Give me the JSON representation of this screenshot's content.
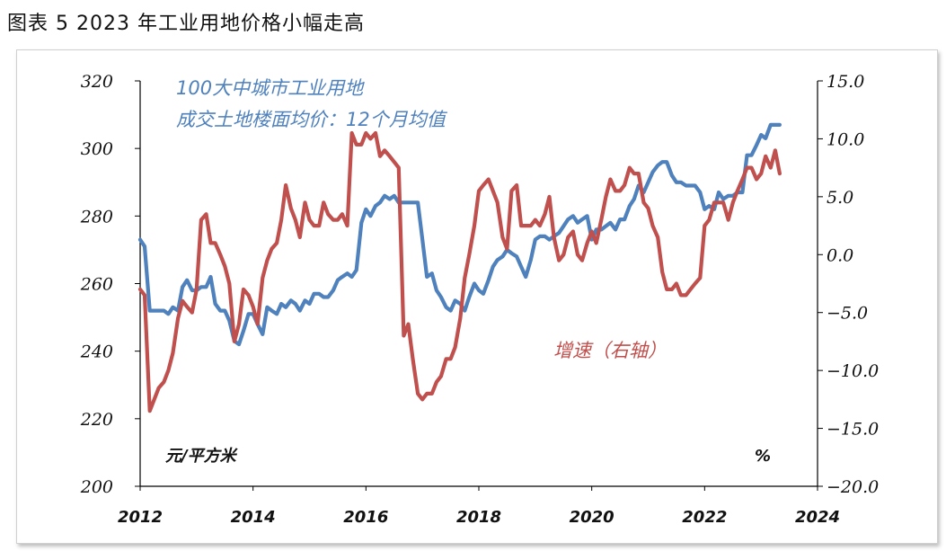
{
  "title": "图表 5 2023 年工业用地价格小幅走高",
  "chart_data": {
    "type": "line",
    "x_ticks": [
      "2012",
      "2014",
      "2016",
      "2018",
      "2020",
      "2022",
      "2024"
    ],
    "xlim": [
      2012,
      2024
    ],
    "y_left": {
      "ticks": [
        "320",
        "300",
        "280",
        "260",
        "240",
        "220",
        "200"
      ],
      "ylim": [
        200,
        320
      ],
      "unit": "元/平方米"
    },
    "y_right": {
      "ticks": [
        "15.0",
        "10.0",
        "5.0",
        "0.0",
        "-5.0",
        "-10.0",
        "-15.0",
        "-20.0"
      ],
      "ylim": [
        -20,
        15
      ],
      "unit": "%"
    },
    "annotations": {
      "blue_line1": "100大中城市工业用地",
      "blue_line2": "成交土地楼面均价：12个月均值",
      "red": "增速（右轴）"
    },
    "series": [
      {
        "name": "100大中城市工业用地成交土地楼面均价：12个月均值",
        "axis": "left",
        "color": "#4f81bd",
        "x": [
          2012.0,
          2012.08,
          2012.17,
          2012.25,
          2012.33,
          2012.42,
          2012.5,
          2012.58,
          2012.67,
          2012.75,
          2012.83,
          2012.92,
          2013.0,
          2013.08,
          2013.17,
          2013.25,
          2013.33,
          2013.42,
          2013.5,
          2013.58,
          2013.67,
          2013.75,
          2013.83,
          2013.92,
          2014.0,
          2014.08,
          2014.17,
          2014.25,
          2014.33,
          2014.42,
          2014.5,
          2014.58,
          2014.67,
          2014.75,
          2014.83,
          2014.92,
          2015.0,
          2015.08,
          2015.17,
          2015.25,
          2015.33,
          2015.42,
          2015.5,
          2015.58,
          2015.67,
          2015.75,
          2015.83,
          2015.92,
          2016.0,
          2016.08,
          2016.17,
          2016.25,
          2016.33,
          2016.42,
          2016.5,
          2016.58,
          2016.67,
          2016.75,
          2016.83,
          2016.92,
          2017.0,
          2017.08,
          2017.17,
          2017.25,
          2017.33,
          2017.42,
          2017.5,
          2017.58,
          2017.67,
          2017.75,
          2017.83,
          2017.92,
          2018.0,
          2018.08,
          2018.17,
          2018.25,
          2018.33,
          2018.42,
          2018.5,
          2018.58,
          2018.67,
          2018.75,
          2018.83,
          2018.92,
          2019.0,
          2019.08,
          2019.17,
          2019.25,
          2019.33,
          2019.42,
          2019.5,
          2019.58,
          2019.67,
          2019.75,
          2019.83,
          2019.92,
          2020.0,
          2020.08,
          2020.17,
          2020.25,
          2020.33,
          2020.42,
          2020.5,
          2020.58,
          2020.67,
          2020.75,
          2020.83,
          2020.92,
          2021.0,
          2021.08,
          2021.17,
          2021.25,
          2021.33,
          2021.42,
          2021.5,
          2021.58,
          2021.67,
          2021.75,
          2021.83,
          2021.92,
          2022.0,
          2022.08,
          2022.17,
          2022.25,
          2022.33,
          2022.42,
          2022.5,
          2022.58,
          2022.67,
          2022.75,
          2022.83,
          2022.92,
          2023.0,
          2023.08,
          2023.17,
          2023.25,
          2023.33
        ],
        "values": [
          273,
          271,
          252,
          252,
          252,
          252,
          251,
          253,
          252,
          259,
          261,
          258,
          258,
          259,
          259,
          262,
          254,
          252,
          252,
          249,
          243,
          242,
          246,
          251,
          251,
          248,
          245,
          253,
          252,
          251,
          254,
          253,
          255,
          254,
          252,
          255,
          254,
          257,
          257,
          256,
          256,
          258,
          261,
          262,
          263,
          262,
          264,
          278,
          282,
          280,
          283,
          284,
          286,
          285,
          286,
          284,
          284,
          284,
          284,
          284,
          273,
          262,
          263,
          258,
          256,
          253,
          252,
          255,
          254,
          252,
          256,
          260,
          258,
          257,
          261,
          265,
          267,
          268,
          270,
          269,
          268,
          265,
          262,
          267,
          273,
          274,
          274,
          273,
          274,
          275,
          277,
          279,
          280,
          278,
          279,
          280,
          273,
          276,
          276,
          277,
          278,
          276,
          279,
          279,
          283,
          285,
          289,
          287,
          290,
          293,
          295,
          296,
          296,
          292,
          290,
          290,
          289,
          289,
          289,
          287,
          282,
          283,
          282,
          287,
          285,
          286,
          286,
          287,
          287,
          298,
          298,
          301,
          304,
          303,
          307,
          307,
          307
        ]
      },
      {
        "name": "增速（右轴）",
        "axis": "right",
        "color": "#c0504d",
        "x": [
          2012.0,
          2012.08,
          2012.17,
          2012.25,
          2012.33,
          2012.42,
          2012.5,
          2012.58,
          2012.67,
          2012.75,
          2012.83,
          2012.92,
          2013.0,
          2013.08,
          2013.17,
          2013.25,
          2013.33,
          2013.42,
          2013.5,
          2013.58,
          2013.67,
          2013.75,
          2013.83,
          2013.92,
          2014.0,
          2014.08,
          2014.17,
          2014.25,
          2014.33,
          2014.42,
          2014.5,
          2014.58,
          2014.67,
          2014.75,
          2014.83,
          2014.92,
          2015.0,
          2015.08,
          2015.17,
          2015.25,
          2015.33,
          2015.42,
          2015.5,
          2015.58,
          2015.67,
          2015.75,
          2015.83,
          2015.92,
          2016.0,
          2016.08,
          2016.17,
          2016.25,
          2016.33,
          2016.42,
          2016.5,
          2016.58,
          2016.67,
          2016.75,
          2016.83,
          2016.92,
          2017.0,
          2017.08,
          2017.17,
          2017.25,
          2017.33,
          2017.42,
          2017.5,
          2017.58,
          2017.67,
          2017.75,
          2017.83,
          2017.92,
          2018.0,
          2018.08,
          2018.17,
          2018.25,
          2018.33,
          2018.42,
          2018.5,
          2018.58,
          2018.67,
          2018.75,
          2018.83,
          2018.92,
          2019.0,
          2019.08,
          2019.17,
          2019.25,
          2019.33,
          2019.42,
          2019.5,
          2019.58,
          2019.67,
          2019.75,
          2019.83,
          2019.92,
          2020.0,
          2020.08,
          2020.17,
          2020.25,
          2020.33,
          2020.42,
          2020.5,
          2020.58,
          2020.67,
          2020.75,
          2020.83,
          2020.92,
          2021.0,
          2021.08,
          2021.17,
          2021.25,
          2021.33,
          2021.42,
          2021.5,
          2021.58,
          2021.67,
          2021.75,
          2021.83,
          2021.92,
          2022.0,
          2022.08,
          2022.17,
          2022.25,
          2022.33,
          2022.42,
          2022.5,
          2022.58,
          2022.67,
          2022.75,
          2022.83,
          2022.92,
          2023.0,
          2023.08,
          2023.17,
          2023.25,
          2023.33
        ],
        "values": [
          -3.0,
          -3.5,
          -13.5,
          -12.5,
          -11.5,
          -11.0,
          -10.0,
          -8.5,
          -5.5,
          -4.0,
          -4.5,
          -5.0,
          -3.0,
          3.0,
          3.5,
          1.0,
          1.0,
          0.0,
          -1.0,
          -2.5,
          -7.5,
          -6.0,
          -3.0,
          -3.5,
          -4.5,
          -6.0,
          -2.0,
          -0.5,
          0.5,
          1.0,
          3.0,
          6.0,
          4.0,
          3.0,
          1.5,
          4.5,
          3.0,
          2.5,
          2.5,
          4.5,
          3.5,
          3.0,
          3.0,
          3.5,
          2.5,
          10.5,
          9.5,
          9.5,
          10.5,
          10.0,
          10.5,
          8.5,
          9.0,
          8.5,
          8.0,
          7.5,
          -7.0,
          -6.0,
          -9.0,
          -12.0,
          -12.5,
          -12.0,
          -12.0,
          -11.0,
          -10.5,
          -9.0,
          -9.0,
          -8.0,
          -5.5,
          -2.0,
          0.0,
          2.5,
          5.5,
          6.0,
          6.5,
          5.5,
          4.5,
          1.5,
          0.5,
          5.5,
          6.0,
          2.5,
          2.5,
          2.5,
          3.0,
          2.5,
          3.5,
          5.0,
          1.5,
          -0.5,
          0.0,
          1.5,
          2.0,
          0.0,
          -0.5,
          1.0,
          2.0,
          1.0,
          3.0,
          5.0,
          6.5,
          5.5,
          5.5,
          6.0,
          7.5,
          7.0,
          7.0,
          4.5,
          4.0,
          2.5,
          1.5,
          -1.5,
          -3.0,
          -3.0,
          -2.5,
          -3.5,
          -3.5,
          -3.0,
          -2.5,
          -2.0,
          2.5,
          3.0,
          4.5,
          4.5,
          4.5,
          3.0,
          4.5,
          5.5,
          6.5,
          7.5,
          7.5,
          6.5,
          7.0,
          8.5,
          7.5,
          9.0,
          7.0
        ]
      }
    ]
  }
}
